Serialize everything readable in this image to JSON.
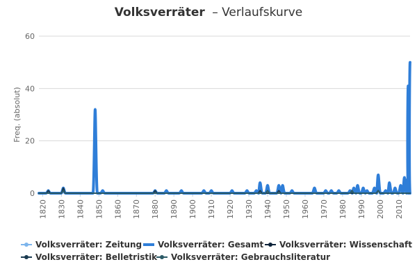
{
  "chart_data": {
    "type": "line",
    "title": {
      "main": "Volksverräter",
      "sub": "– Verlaufskurve"
    },
    "ylabel": "Freq. (absolut)",
    "xlabel": "",
    "xlim": [
      1818,
      2016
    ],
    "ylim": [
      0,
      60
    ],
    "xticks": [
      1820,
      1830,
      1840,
      1850,
      1860,
      1870,
      1880,
      1890,
      1900,
      1910,
      1920,
      1930,
      1940,
      1950,
      1960,
      1970,
      1980,
      1990,
      2000,
      2010
    ],
    "yticks": [
      0,
      20,
      40,
      60
    ],
    "legend_position": "bottom",
    "series": [
      {
        "name": "Volksverräter: Zeitung",
        "color": "#7cb5ec",
        "values": []
      },
      {
        "name": "Volksverräter: Gesamt",
        "color": "#2f7ed8",
        "peaks": [
          [
            1823,
            1
          ],
          [
            1831,
            2
          ],
          [
            1848,
            32
          ],
          [
            1852,
            1
          ],
          [
            1880,
            1
          ],
          [
            1886,
            1
          ],
          [
            1894,
            1
          ],
          [
            1906,
            1
          ],
          [
            1910,
            1
          ],
          [
            1921,
            1
          ],
          [
            1929,
            1
          ],
          [
            1934,
            1
          ],
          [
            1936,
            4
          ],
          [
            1940,
            3
          ],
          [
            1946,
            3
          ],
          [
            1948,
            3
          ],
          [
            1953,
            1
          ],
          [
            1965,
            2
          ],
          [
            1971,
            1
          ],
          [
            1974,
            1
          ],
          [
            1978,
            1
          ],
          [
            1984,
            1
          ],
          [
            1986,
            2
          ],
          [
            1988,
            3
          ],
          [
            1991,
            2
          ],
          [
            1993,
            1
          ],
          [
            1997,
            2
          ],
          [
            1999,
            7
          ],
          [
            2003,
            1
          ],
          [
            2005,
            4
          ],
          [
            2008,
            2
          ],
          [
            2011,
            3
          ],
          [
            2013,
            6
          ],
          [
            2014,
            5
          ],
          [
            2015,
            41
          ],
          [
            2016,
            50
          ]
        ]
      },
      {
        "name": "Volksverräter: Wissenschaft",
        "color": "#0d233a",
        "values": []
      },
      {
        "name": "Volksverräter: Belletristik",
        "color": "#1a3a50",
        "peaks": [
          [
            1823,
            1
          ],
          [
            1831,
            2
          ],
          [
            1880,
            1
          ],
          [
            1936,
            1
          ],
          [
            1946,
            1
          ],
          [
            1999,
            1
          ]
        ]
      },
      {
        "name": "Volksverräter: Gebrauchsliteratur",
        "color": "#2b5a66",
        "peaks": [
          [
            1831,
            1
          ],
          [
            1940,
            1
          ],
          [
            1985,
            1
          ],
          [
            1999,
            1
          ]
        ]
      }
    ]
  }
}
